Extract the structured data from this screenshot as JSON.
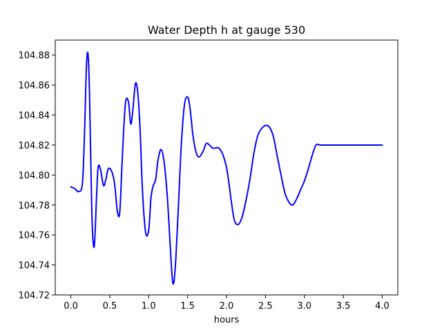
{
  "chart_data": {
    "type": "line",
    "title": "Water Depth h at gauge 530",
    "xlabel": "hours",
    "ylabel": "",
    "xlim": [
      -0.2,
      4.2
    ],
    "ylim": [
      104.72,
      104.89
    ],
    "xticks": [
      0.0,
      0.5,
      1.0,
      1.5,
      2.0,
      2.5,
      3.0,
      3.5,
      4.0
    ],
    "xtick_labels": [
      "0.0",
      "0.5",
      "1.0",
      "1.5",
      "2.0",
      "2.5",
      "3.0",
      "3.5",
      "4.0"
    ],
    "yticks": [
      104.72,
      104.74,
      104.76,
      104.78,
      104.8,
      104.82,
      104.84,
      104.86,
      104.88
    ],
    "ytick_labels": [
      "104.72",
      "104.74",
      "104.76",
      "104.78",
      "104.80",
      "104.82",
      "104.84",
      "104.86",
      "104.88"
    ],
    "grid": false,
    "series": [
      {
        "color": "#0000ff",
        "x": [
          0.0,
          0.05,
          0.1,
          0.15,
          0.18,
          0.2,
          0.22,
          0.24,
          0.27,
          0.3,
          0.33,
          0.35,
          0.38,
          0.42,
          0.45,
          0.48,
          0.52,
          0.56,
          0.6,
          0.63,
          0.66,
          0.7,
          0.74,
          0.77,
          0.8,
          0.83,
          0.86,
          0.89,
          0.92,
          0.96,
          1.0,
          1.03,
          1.06,
          1.09,
          1.12,
          1.16,
          1.2,
          1.24,
          1.28,
          1.31,
          1.34,
          1.38,
          1.42,
          1.46,
          1.5,
          1.53,
          1.57,
          1.61,
          1.65,
          1.7,
          1.74,
          1.78,
          1.82,
          1.86,
          1.9,
          1.95,
          2.0,
          2.03,
          2.06,
          2.1,
          2.15,
          2.2,
          2.25,
          2.3,
          2.35,
          2.4,
          2.45,
          2.5,
          2.55,
          2.6,
          2.65,
          2.7,
          2.75,
          2.8,
          2.85,
          2.9,
          2.95,
          3.0,
          3.05,
          3.1,
          3.15,
          3.2,
          3.25,
          3.3,
          3.35,
          3.4,
          3.45,
          3.5,
          3.55,
          3.6,
          3.65,
          3.7,
          3.75,
          3.8,
          3.85,
          3.9,
          3.95,
          4.0
        ],
        "y": [
          104.792,
          104.791,
          104.789,
          104.795,
          104.835,
          104.872,
          104.881,
          104.855,
          104.775,
          104.752,
          104.785,
          104.805,
          104.804,
          104.793,
          104.797,
          104.804,
          104.803,
          104.795,
          104.775,
          104.776,
          104.81,
          104.847,
          104.849,
          104.834,
          104.845,
          104.861,
          104.855,
          104.83,
          104.79,
          104.762,
          104.763,
          104.785,
          104.793,
          104.797,
          104.81,
          104.817,
          104.808,
          104.785,
          104.75,
          104.728,
          104.737,
          104.777,
          104.821,
          104.847,
          104.852,
          104.845,
          104.826,
          104.815,
          104.812,
          104.816,
          104.821,
          104.82,
          104.818,
          104.818,
          104.818,
          104.814,
          104.805,
          104.795,
          104.783,
          104.77,
          104.767,
          104.772,
          104.783,
          104.797,
          104.814,
          104.826,
          104.831,
          104.833,
          104.832,
          104.826,
          104.813,
          104.8,
          104.788,
          104.782,
          104.78,
          104.784,
          104.79,
          104.796,
          104.804,
          104.813,
          104.82,
          104.82,
          104.82,
          104.82,
          104.82,
          104.82,
          104.82,
          104.82,
          104.82,
          104.82,
          104.82,
          104.82,
          104.82,
          104.82,
          104.82,
          104.82,
          104.82,
          104.82
        ]
      }
    ]
  }
}
